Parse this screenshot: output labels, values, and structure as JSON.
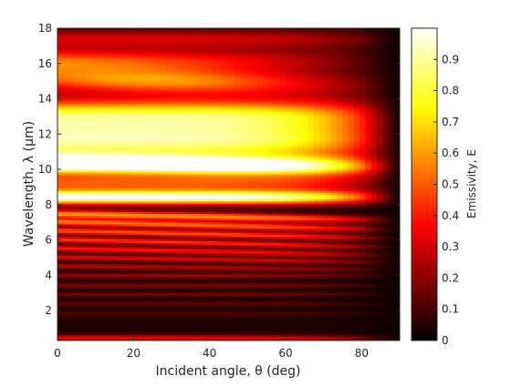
{
  "chart_data": {
    "type": "heatmap",
    "xlabel": "Incident angle, θ (deg)",
    "ylabel": "Wavelength, λ (μm)",
    "colorbar_label": "Emissivity, E",
    "colormap": "hot",
    "xlim": [
      0,
      90
    ],
    "ylim": [
      0.3,
      18
    ],
    "clim": [
      0,
      1
    ],
    "x_ticks": [
      0,
      20,
      40,
      60,
      80
    ],
    "y_ticks": [
      2,
      4,
      6,
      8,
      10,
      12,
      14,
      16,
      18
    ],
    "colorbar_ticks": [
      0,
      0.1,
      0.2,
      0.3,
      0.4,
      0.5,
      0.6,
      0.7,
      0.8,
      0.9
    ],
    "grid": false,
    "description_bands": [
      {
        "wavelength_um": 0.5,
        "emissivity": 0.3
      },
      {
        "wavelength_um": 1.5,
        "emissivity": 0.1
      },
      {
        "wavelength_um": 3.0,
        "emissivity": 0.15
      },
      {
        "wavelength_um": 4.0,
        "emissivity": 0.2
      },
      {
        "wavelength_um": 5.0,
        "emissivity": 0.35
      },
      {
        "wavelength_um": 5.8,
        "emissivity": 0.45
      },
      {
        "wavelength_um": 6.6,
        "emissivity": 0.5
      },
      {
        "wavelength_um": 7.3,
        "emissivity": 0.55
      },
      {
        "wavelength_um": 8.5,
        "emissivity": 0.97
      },
      {
        "wavelength_um": 9.3,
        "emissivity": 0.45
      },
      {
        "wavelength_um": 10.4,
        "emissivity": 0.98
      },
      {
        "wavelength_um": 12.0,
        "emissivity": 0.9
      },
      {
        "wavelength_um": 14.8,
        "emissivity": 0.65
      },
      {
        "wavelength_um": 16.2,
        "emissivity": 0.5
      },
      {
        "wavelength_um": 17.5,
        "emissivity": 0.3
      }
    ]
  }
}
